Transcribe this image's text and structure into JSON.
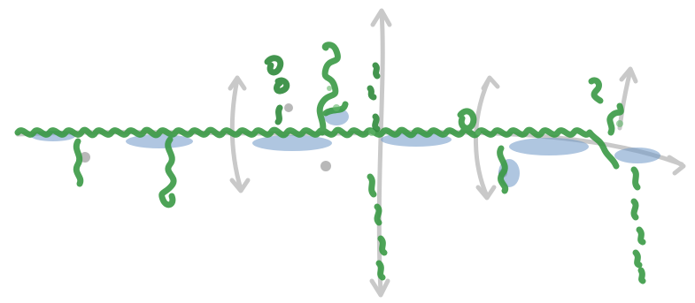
{
  "image": {
    "background": "#ffffff",
    "colors": {
      "backbone": "#3a9a45",
      "backbone_dark": "#2f8a3b",
      "highlight": "#63b86a",
      "speckle": "#6f98c8",
      "arrow": "#c4c4c4",
      "pivot": "#b8b8b8"
    }
  }
}
